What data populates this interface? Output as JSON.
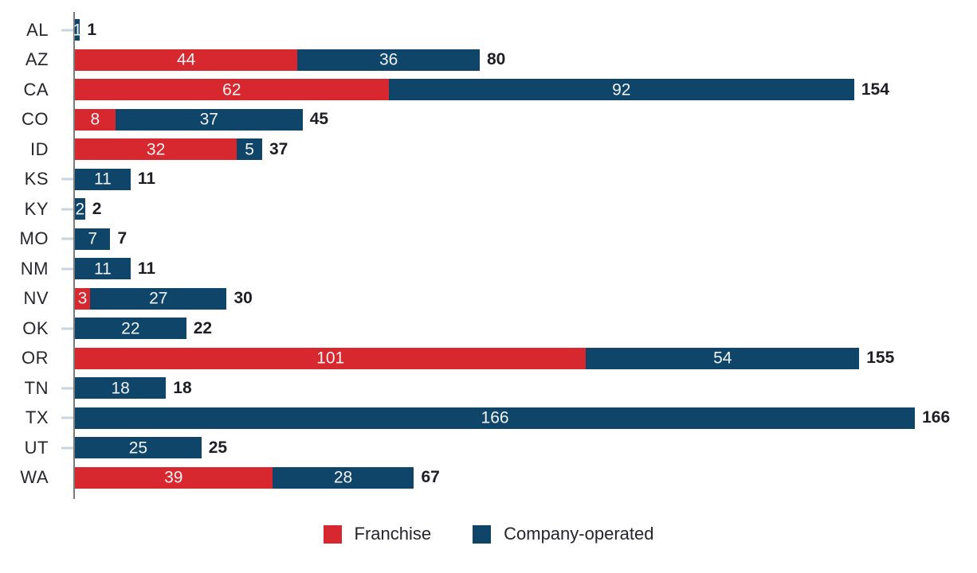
{
  "chart_data": {
    "type": "bar",
    "orientation": "horizontal",
    "stacked": true,
    "title": "",
    "xlabel": "",
    "ylabel": "",
    "xlim": [
      0,
      166
    ],
    "grid": false,
    "legend_position": "bottom-center",
    "categories": [
      "AL",
      "AZ",
      "CA",
      "CO",
      "ID",
      "KS",
      "KY",
      "MO",
      "NM",
      "NV",
      "OK",
      "OR",
      "TN",
      "TX",
      "UT",
      "WA"
    ],
    "series": [
      {
        "name": "Franchise",
        "color": "#d7282f",
        "values": [
          0,
          44,
          62,
          8,
          32,
          0,
          0,
          0,
          0,
          3,
          0,
          101,
          0,
          0,
          0,
          39
        ]
      },
      {
        "name": "Company-operated",
        "color": "#10456a",
        "values": [
          1,
          36,
          92,
          37,
          5,
          11,
          2,
          7,
          11,
          27,
          22,
          54,
          18,
          166,
          25,
          28
        ]
      }
    ],
    "totals": [
      1,
      80,
      154,
      45,
      37,
      11,
      2,
      7,
      11,
      30,
      22,
      155,
      18,
      166,
      25,
      67
    ],
    "value_label_style": "white numbers centered inside each segment",
    "total_label_style": "bold dark number right of each bar",
    "axis_color": "#7a7a7a",
    "tick_color": "#c7d6e0",
    "segment_label_color": "#f1f2f3"
  },
  "legend": {
    "items": [
      {
        "label": "Franchise",
        "color": "#d7282f"
      },
      {
        "label": "Company-operated",
        "color": "#10456a"
      }
    ]
  }
}
